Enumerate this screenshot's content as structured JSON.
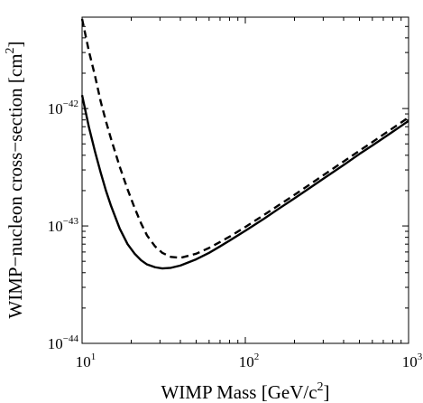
{
  "chart_data": {
    "type": "line",
    "title": "",
    "xlabel": "WIMP Mass [GeV/c",
    "xlabel_sup": "2",
    "xlabel_close": "]",
    "ylabel": "WIMP−nucleon cross−section [cm",
    "ylabel_sup": "2",
    "ylabel_close": "]",
    "xscale": "log",
    "yscale": "log",
    "xlim": [
      10,
      1000
    ],
    "ylim": [
      1e-44,
      6e-42
    ],
    "grid": false,
    "legend": "none",
    "x_ticks": [
      {
        "value": 10,
        "base": "10",
        "exp": "1"
      },
      {
        "value": 100,
        "base": "10",
        "exp": "2"
      },
      {
        "value": 1000,
        "base": "10",
        "exp": "3"
      }
    ],
    "y_ticks": [
      {
        "value": 1e-44,
        "base": "10",
        "exp": "−44"
      },
      {
        "value": 1e-43,
        "base": "10",
        "exp": "−43"
      },
      {
        "value": 1e-42,
        "base": "10",
        "exp": "−42"
      }
    ],
    "series": [
      {
        "style": "solid",
        "color": "#000000",
        "points": [
          [
            10.0,
            1.3e-42
          ],
          [
            11.0,
            7e-43
          ],
          [
            12.0,
            4.3e-43
          ],
          [
            13.0,
            2.85e-43
          ],
          [
            14.0,
            2e-43
          ],
          [
            15.0,
            1.5e-43
          ],
          [
            17.0,
            9.5e-44
          ],
          [
            19.0,
            7e-44
          ],
          [
            21.0,
            5.8e-44
          ],
          [
            23.0,
            5.1e-44
          ],
          [
            25.0,
            4.7e-44
          ],
          [
            28.0,
            4.45e-44
          ],
          [
            31.0,
            4.35e-44
          ],
          [
            35.0,
            4.4e-44
          ],
          [
            40.0,
            4.6e-44
          ],
          [
            50.0,
            5.2e-44
          ],
          [
            60.0,
            5.9e-44
          ],
          [
            70.0,
            6.7e-44
          ],
          [
            80.0,
            7.5e-44
          ],
          [
            100.0,
            9.1e-44
          ],
          [
            130.0,
            1.15e-43
          ],
          [
            160.0,
            1.4e-43
          ],
          [
            200.0,
            1.72e-43
          ],
          [
            250.0,
            2.12e-43
          ],
          [
            300.0,
            2.52e-43
          ],
          [
            400.0,
            3.3e-43
          ],
          [
            500.0,
            4.1e-43
          ],
          [
            600.0,
            4.85e-43
          ],
          [
            700.0,
            5.6e-43
          ],
          [
            800.0,
            6.35e-43
          ],
          [
            900.0,
            7.1e-43
          ],
          [
            1000.0,
            7.85e-43
          ]
        ]
      },
      {
        "style": "dashed",
        "color": "#000000",
        "points": [
          [
            10.0,
            5.8e-42
          ],
          [
            11.0,
            3.1e-42
          ],
          [
            12.0,
            1.9e-42
          ],
          [
            13.0,
            1.15e-42
          ],
          [
            14.0,
            7.8e-43
          ],
          [
            15.0,
            5.6e-43
          ],
          [
            17.0,
            3.2e-43
          ],
          [
            19.0,
            2.05e-43
          ],
          [
            21.0,
            1.42e-43
          ],
          [
            23.0,
            1.05e-43
          ],
          [
            25.0,
            8.3e-44
          ],
          [
            28.0,
            6.7e-44
          ],
          [
            31.0,
            5.9e-44
          ],
          [
            35.0,
            5.45e-44
          ],
          [
            40.0,
            5.35e-44
          ],
          [
            50.0,
            5.8e-44
          ],
          [
            60.0,
            6.5e-44
          ],
          [
            70.0,
            7.3e-44
          ],
          [
            80.0,
            8.1e-44
          ],
          [
            100.0,
            9.8e-44
          ],
          [
            130.0,
            1.24e-43
          ],
          [
            160.0,
            1.5e-43
          ],
          [
            200.0,
            1.84e-43
          ],
          [
            250.0,
            2.27e-43
          ],
          [
            300.0,
            2.7e-43
          ],
          [
            400.0,
            3.54e-43
          ],
          [
            500.0,
            4.37e-43
          ],
          [
            600.0,
            5.18e-43
          ],
          [
            700.0,
            6e-43
          ],
          [
            800.0,
            6.8e-43
          ],
          [
            900.0,
            7.6e-43
          ],
          [
            1000.0,
            8.4e-43
          ]
        ]
      }
    ]
  }
}
